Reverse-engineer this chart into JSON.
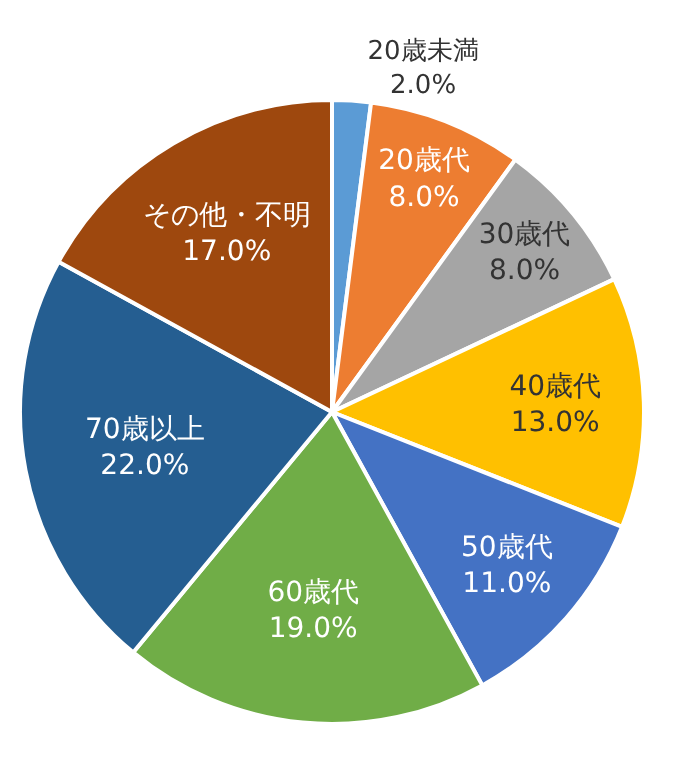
{
  "chart_data": {
    "type": "pie",
    "categories": [
      "20歳未満",
      "20歳代",
      "30歳代",
      "40歳代",
      "50歳代",
      "60歳代",
      "70歳以上",
      "その他・不明"
    ],
    "values": [
      2.0,
      8.0,
      8.0,
      13.0,
      11.0,
      19.0,
      22.0,
      17.0
    ],
    "value_labels": [
      "2.0%",
      "8.0%",
      "8.0%",
      "13.0%",
      "11.0%",
      "19.0%",
      "22.0%",
      "17.0%"
    ],
    "colors": [
      "#5b9bd5",
      "#ed7d31",
      "#a5a5a5",
      "#ffc000",
      "#4472c4",
      "#70ad47",
      "#255e91",
      "#9e480e"
    ],
    "legend": false
  }
}
